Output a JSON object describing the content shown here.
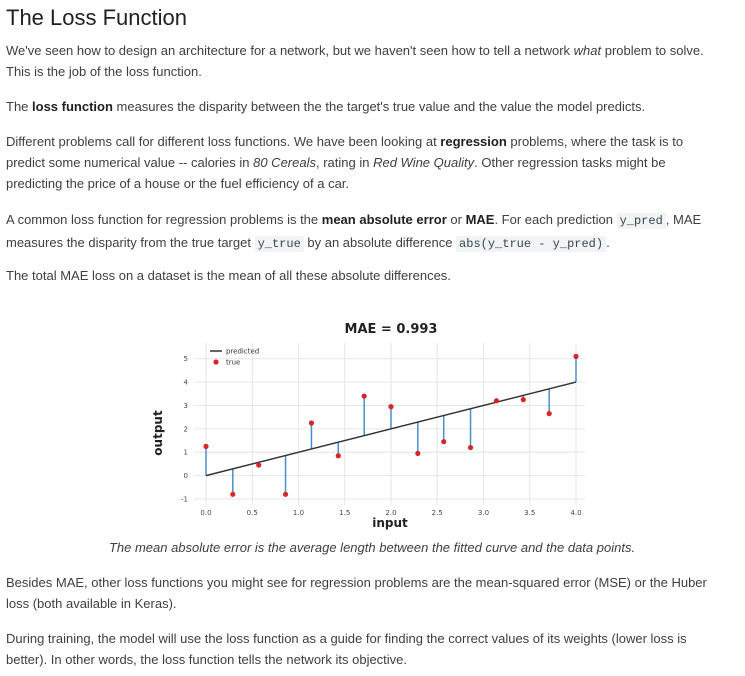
{
  "heading": "The Loss Function",
  "p1": {
    "a": "We've seen how to design an architecture for a network, but we haven't seen how to tell a network ",
    "em": "what",
    "b": " problem to solve.",
    "c": "This is the job of the loss function."
  },
  "p2": {
    "a": "The ",
    "bold": "loss function",
    "b": " measures the disparity between the the target's true value and the value the model predicts."
  },
  "p3": {
    "a": "Different problems call for different loss functions. We have been looking at ",
    "bold": "regression",
    "b": " problems, where the task is to",
    "c": "predict some numerical value -- calories in ",
    "em1": "80 Cereals",
    "d": ", rating in ",
    "em2": "Red Wine Quality",
    "e": ". Other regression tasks might be",
    "f": "predicting the price of a house or the fuel efficiency of a car."
  },
  "p4": {
    "a": "A common loss function for regression problems is the ",
    "bold1": "mean absolute error",
    "b": " or ",
    "bold2": "MAE",
    "c": ". For each prediction ",
    "code1": "y_pred",
    "d": ", MAE",
    "e": "measures the disparity from the true target ",
    "code2": "y_true",
    "f": " by an absolute difference ",
    "code3": "abs(y_true - y_pred)",
    "g": "."
  },
  "p5": "The total MAE loss on a dataset is the mean of all these absolute differences.",
  "caption": "The mean absolute error is the average length between the fitted curve and the data points.",
  "p6": {
    "a": "Besides MAE, other loss functions you might see for regression problems are the mean-squared error (MSE) or the Huber",
    "b": "loss (both available in Keras)."
  },
  "p7": {
    "a": "During training, the model will use the loss function as a guide for finding the correct values of its weights (lower loss is",
    "b": "better). In other words, the loss function tells the network its objective."
  },
  "chart_data": {
    "type": "scatter",
    "title": "MAE = 0.993",
    "xlabel": "input",
    "ylabel": "output",
    "xlim": [
      0,
      40
    ],
    "ylim": [
      -1,
      5.5
    ],
    "xticks": [
      "0.0",
      "0.5",
      "1.0",
      "1.5",
      "2.0",
      "2.5",
      "3.0",
      "3.5",
      "4.0"
    ],
    "xtick_values": [
      0,
      5,
      10,
      15,
      20,
      25,
      30,
      35,
      40
    ],
    "yticks": [
      "-1",
      "0",
      "1",
      "2",
      "3",
      "4",
      "5"
    ],
    "ytick_values": [
      -1,
      0,
      1,
      2,
      3,
      4,
      5
    ],
    "legend": [
      "predicted",
      "true"
    ],
    "legend_position": "top-left",
    "grid": true,
    "colors": {
      "predicted": "#333333",
      "true": "#d62728",
      "residual": "#4a90c8"
    },
    "predicted_line": {
      "x": [
        0,
        40
      ],
      "y": [
        0,
        4
      ]
    },
    "points": {
      "x": [
        0,
        2.9,
        5.7,
        8.6,
        11.4,
        14.3,
        17.1,
        20,
        22.9,
        25.7,
        28.6,
        31.4,
        34.3,
        37.1,
        40
      ],
      "y": [
        1.25,
        -0.8,
        0.45,
        -0.8,
        2.25,
        0.85,
        3.4,
        2.95,
        0.95,
        1.45,
        1.2,
        3.2,
        3.25,
        2.65,
        5.1
      ]
    }
  }
}
